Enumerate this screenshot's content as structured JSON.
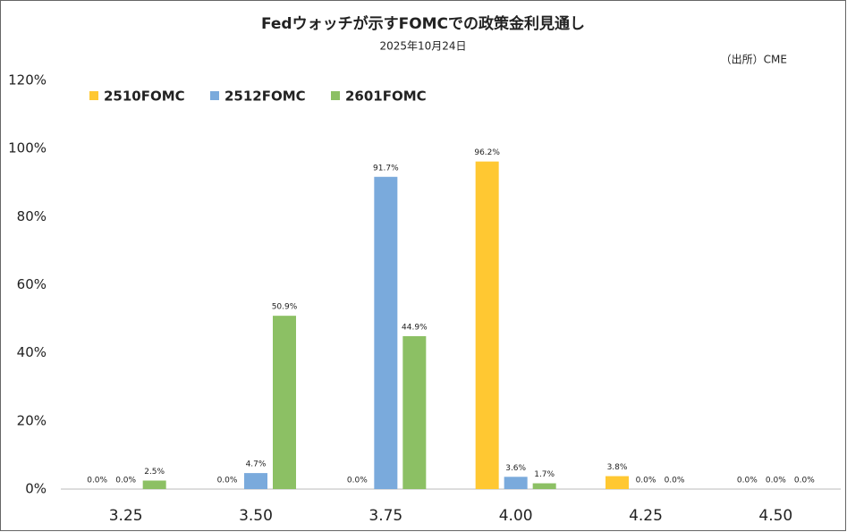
{
  "chart_data": {
    "type": "bar",
    "title": "Fedウォッチが示すFOMCでの政策金利見通し",
    "subtitle": "2025年10月24日",
    "source": "（出所）CME",
    "categories": [
      "3.25",
      "3.50",
      "3.75",
      "4.00",
      "4.25",
      "4.50"
    ],
    "series": [
      {
        "name": "2510FOMC",
        "color": "#ffc832",
        "values": [
          0.0,
          0.0,
          0.0,
          96.2,
          3.8,
          0.0
        ],
        "value_labels": [
          "0.0%",
          "0.0%",
          "0.0%",
          "96.2%",
          "3.8%",
          "0.0%"
        ]
      },
      {
        "name": "2512FOMC",
        "color": "#7aaadc",
        "values": [
          0.0,
          4.7,
          91.7,
          3.6,
          0.0,
          0.0
        ],
        "value_labels": [
          "0.0%",
          "4.7%",
          "91.7%",
          "3.6%",
          "0.0%",
          "0.0%"
        ]
      },
      {
        "name": "2601FOMC",
        "color": "#8cc064",
        "values": [
          2.5,
          50.9,
          44.9,
          1.7,
          0.0,
          0.0
        ],
        "value_labels": [
          "2.5%",
          "50.9%",
          "44.9%",
          "1.7%",
          "0.0%",
          "0.0%"
        ]
      }
    ],
    "ylim": [
      0,
      120
    ],
    "yticks": [
      {
        "value": 0,
        "label": "0%"
      },
      {
        "value": 20,
        "label": "20%"
      },
      {
        "value": 40,
        "label": "40%"
      },
      {
        "value": 60,
        "label": "60%"
      },
      {
        "value": 80,
        "label": "80%"
      },
      {
        "value": 100,
        "label": "100%"
      },
      {
        "value": 120,
        "label": "120%"
      }
    ],
    "grid": false,
    "legend": "top-left"
  }
}
